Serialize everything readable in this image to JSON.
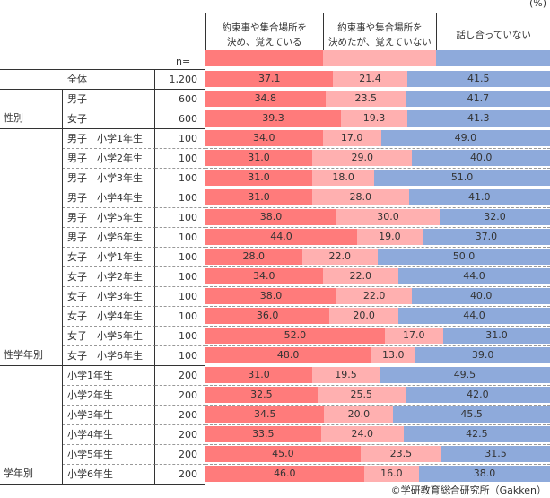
{
  "unit_label": "(%)",
  "n_label": "n=",
  "footer": "©学研教育総合研究所（Gakken）",
  "chart_data": {
    "type": "bar",
    "stacked": true,
    "orientation": "horizontal",
    "xlim": [
      0,
      100
    ],
    "series": [
      {
        "name": "約束事や集合場所を決め、覚えている",
        "line1": "約束事や集合場所を",
        "line2": "決め、覚えている",
        "color": "#ff7b7b"
      },
      {
        "name": "約束事や集合場所を決めたが、覚えていない",
        "line1": "約束事や集合場所を",
        "line2": "決めたが、覚えていない",
        "color": "#ffb0b0"
      },
      {
        "name": "話し合っていない",
        "line1": "話し合っていない",
        "line2": "",
        "color": "#8eaadb"
      }
    ],
    "groups": [
      {
        "name": "",
        "rows": [
          {
            "label": "全体",
            "n": "1,200",
            "values": [
              37.1,
              21.4,
              41.5
            ]
          }
        ]
      },
      {
        "name": "性別",
        "rows": [
          {
            "label": "男子",
            "n": "600",
            "values": [
              34.8,
              23.5,
              41.7
            ]
          },
          {
            "label": "女子",
            "n": "600",
            "values": [
              39.3,
              19.3,
              41.3
            ]
          }
        ]
      },
      {
        "name": "性学年別",
        "rows": [
          {
            "label": "男子　小学1年生",
            "n": "100",
            "values": [
              34.0,
              17.0,
              49.0
            ]
          },
          {
            "label": "男子　小学2年生",
            "n": "100",
            "values": [
              31.0,
              29.0,
              40.0
            ]
          },
          {
            "label": "男子　小学3年生",
            "n": "100",
            "values": [
              31.0,
              18.0,
              51.0
            ]
          },
          {
            "label": "男子　小学4年生",
            "n": "100",
            "values": [
              31.0,
              28.0,
              41.0
            ]
          },
          {
            "label": "男子　小学5年生",
            "n": "100",
            "values": [
              38.0,
              30.0,
              32.0
            ]
          },
          {
            "label": "男子　小学6年生",
            "n": "100",
            "values": [
              44.0,
              19.0,
              37.0
            ]
          },
          {
            "label": "女子　小学1年生",
            "n": "100",
            "values": [
              28.0,
              22.0,
              50.0
            ]
          },
          {
            "label": "女子　小学2年生",
            "n": "100",
            "values": [
              34.0,
              22.0,
              44.0
            ]
          },
          {
            "label": "女子　小学3年生",
            "n": "100",
            "values": [
              38.0,
              22.0,
              40.0
            ]
          },
          {
            "label": "女子　小学4年生",
            "n": "100",
            "values": [
              36.0,
              20.0,
              44.0
            ]
          },
          {
            "label": "女子　小学5年生",
            "n": "100",
            "values": [
              52.0,
              17.0,
              31.0
            ]
          },
          {
            "label": "女子　小学6年生",
            "n": "100",
            "values": [
              48.0,
              13.0,
              39.0
            ]
          }
        ]
      },
      {
        "name": "学年別",
        "rows": [
          {
            "label": "小学1年生",
            "n": "200",
            "values": [
              31.0,
              19.5,
              49.5
            ]
          },
          {
            "label": "小学2年生",
            "n": "200",
            "values": [
              32.5,
              25.5,
              42.0
            ]
          },
          {
            "label": "小学3年生",
            "n": "200",
            "values": [
              34.5,
              20.0,
              45.5
            ]
          },
          {
            "label": "小学4年生",
            "n": "200",
            "values": [
              33.5,
              24.0,
              42.5
            ]
          },
          {
            "label": "小学5年生",
            "n": "200",
            "values": [
              45.0,
              23.5,
              31.5
            ]
          },
          {
            "label": "小学6年生",
            "n": "200",
            "values": [
              46.0,
              16.0,
              38.0
            ]
          }
        ]
      }
    ]
  }
}
